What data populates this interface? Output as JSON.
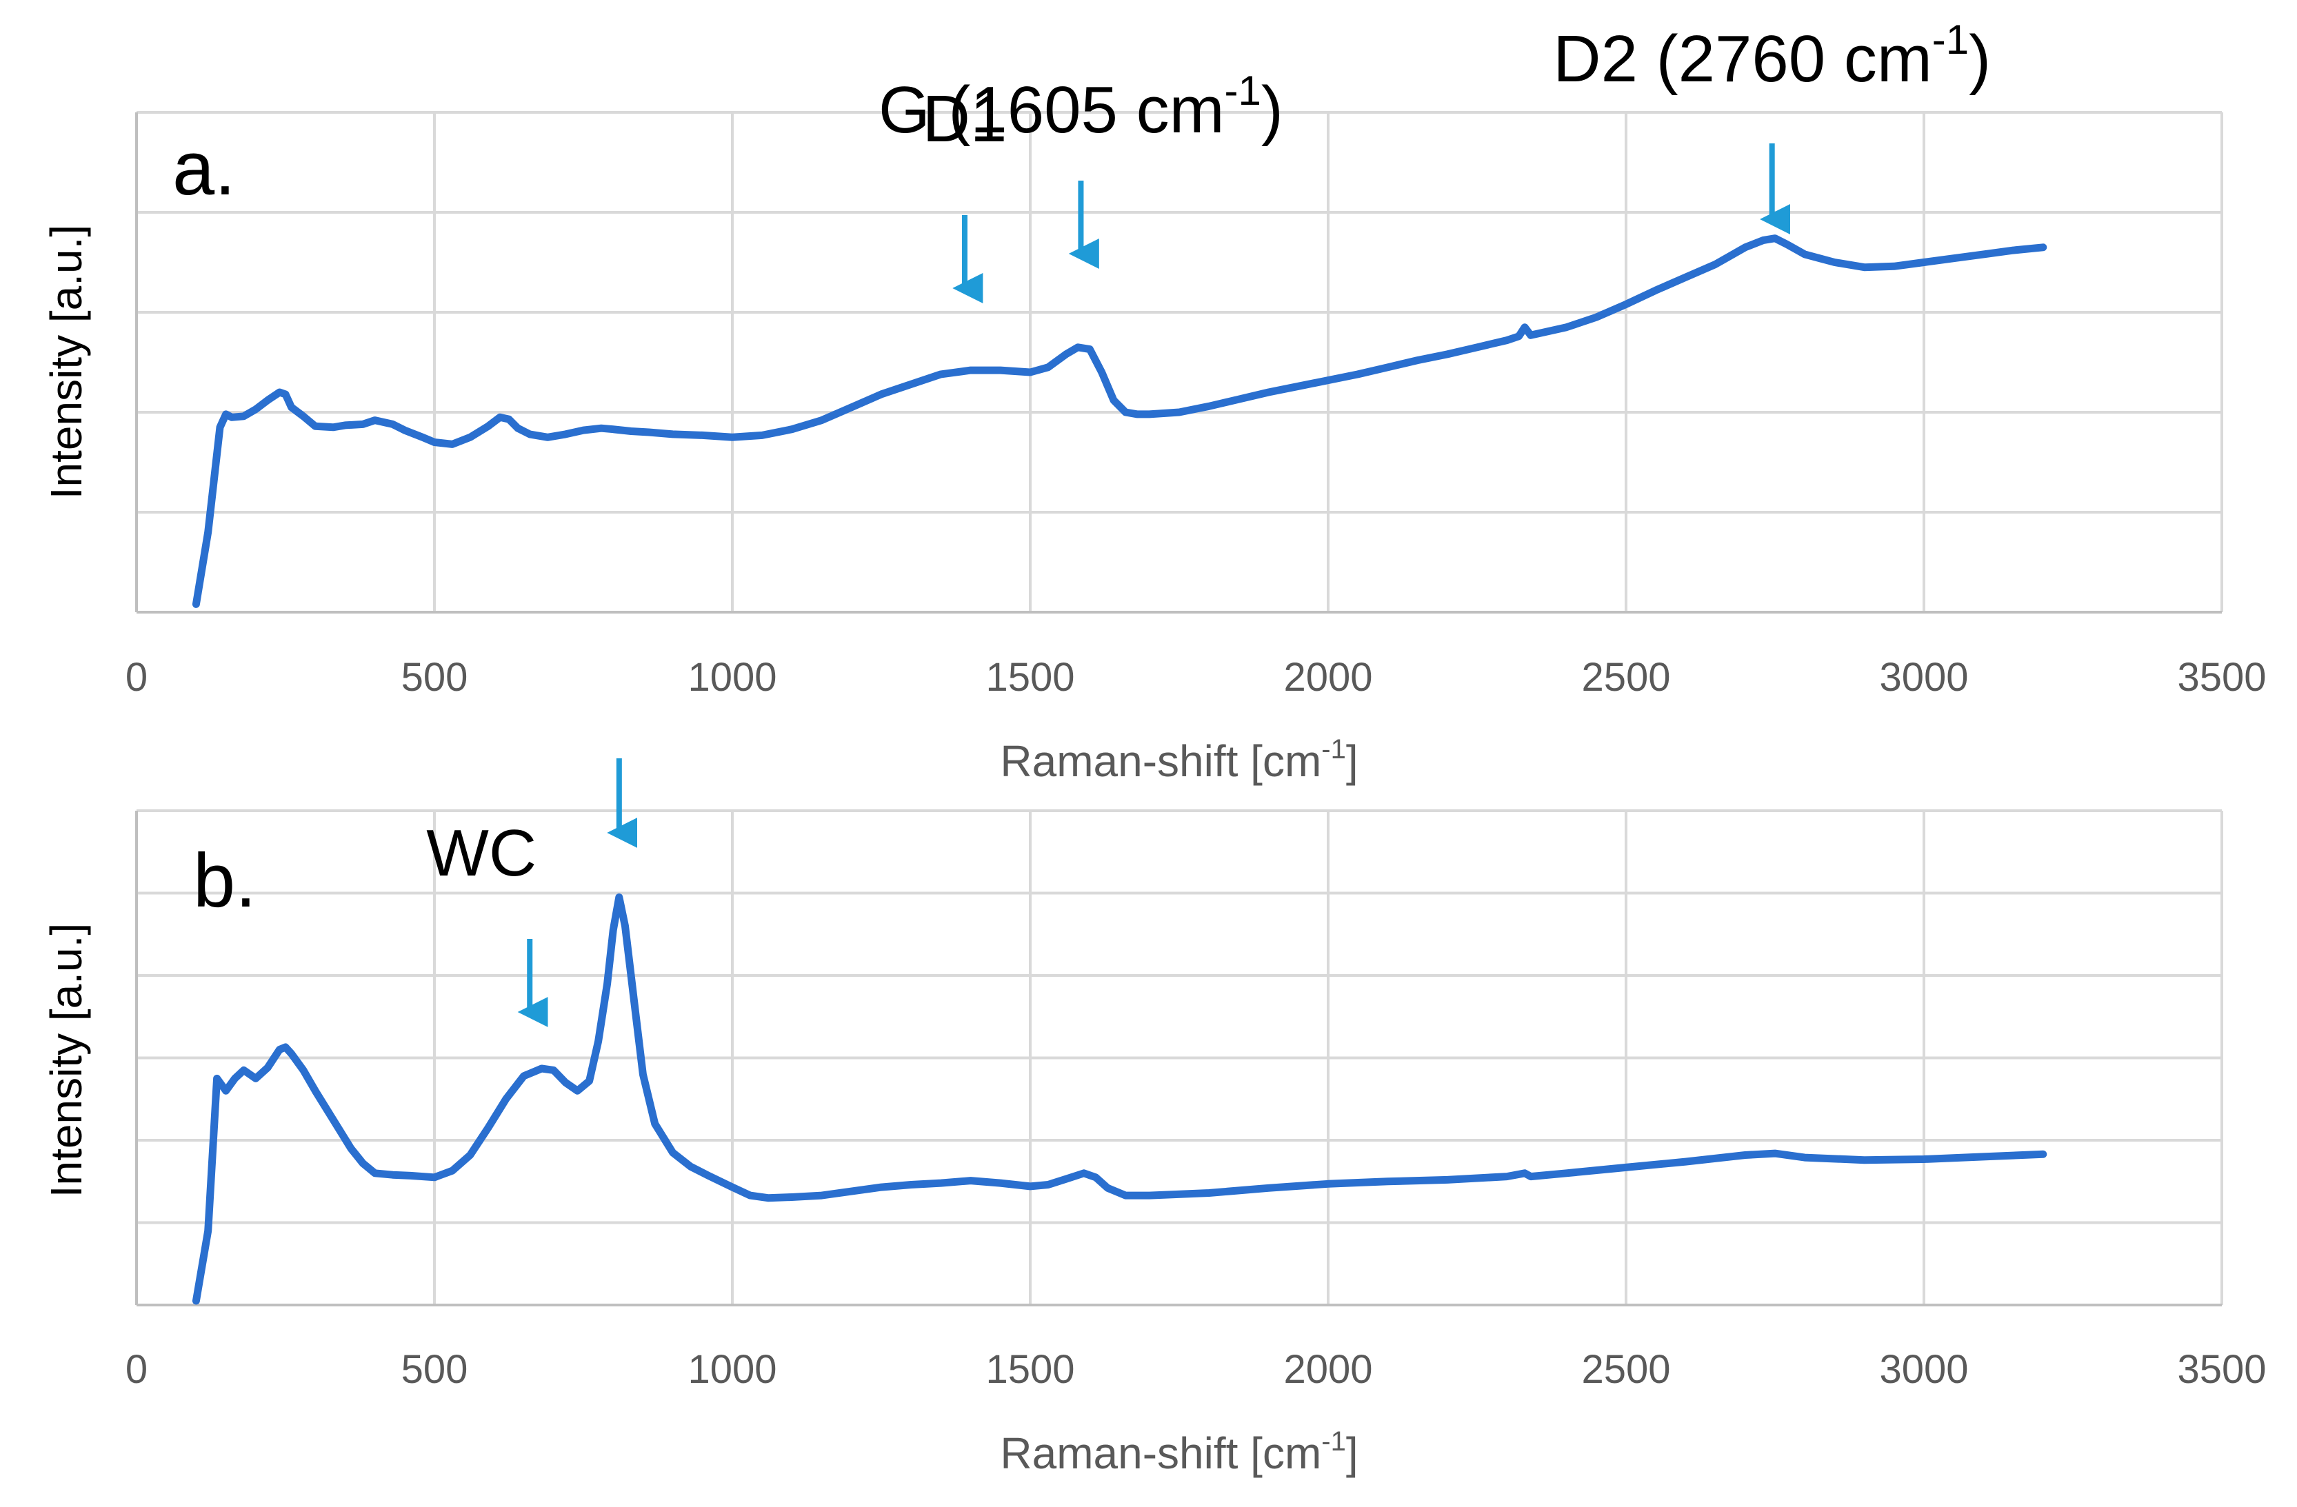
{
  "chart_data": [
    {
      "panel": "a.",
      "type": "line",
      "xlabel_main": "Raman-shift [cm",
      "xlabel_sup": "-1",
      "xlabel_close": "]",
      "ylabel": "Intensity [a.u.]",
      "xlim": [
        0,
        3500
      ],
      "ylim": [
        0,
        5
      ],
      "xticks": [
        0,
        500,
        1000,
        1500,
        2000,
        2500,
        3000,
        3500
      ],
      "series_color": "#2a6fcf",
      "arrow_color": "#1f9bd7",
      "series": [
        {
          "name": "a",
          "x": [
            100,
            120,
            140,
            150,
            160,
            180,
            200,
            220,
            240,
            250,
            260,
            280,
            300,
            330,
            350,
            380,
            400,
            430,
            450,
            480,
            500,
            530,
            560,
            590,
            610,
            625,
            640,
            660,
            690,
            720,
            750,
            780,
            800,
            830,
            860,
            900,
            950,
            1000,
            1050,
            1100,
            1150,
            1200,
            1250,
            1300,
            1350,
            1400,
            1450,
            1500,
            1530,
            1560,
            1580,
            1600,
            1620,
            1640,
            1660,
            1680,
            1700,
            1750,
            1800,
            1850,
            1900,
            1950,
            2000,
            2050,
            2100,
            2150,
            2200,
            2250,
            2300,
            2320,
            2330,
            2340,
            2400,
            2450,
            2500,
            2550,
            2600,
            2650,
            2700,
            2730,
            2750,
            2770,
            2800,
            2850,
            2900,
            2950,
            3000,
            3050,
            3100,
            3150,
            3200
          ],
          "y": [
            0.08,
            0.8,
            1.85,
            1.98,
            1.95,
            1.96,
            2.03,
            2.12,
            2.2,
            2.18,
            2.05,
            1.96,
            1.86,
            1.85,
            1.87,
            1.88,
            1.92,
            1.88,
            1.82,
            1.75,
            1.7,
            1.68,
            1.75,
            1.86,
            1.95,
            1.93,
            1.84,
            1.78,
            1.75,
            1.78,
            1.82,
            1.84,
            1.83,
            1.81,
            1.8,
            1.78,
            1.77,
            1.75,
            1.77,
            1.83,
            1.92,
            2.05,
            2.18,
            2.28,
            2.38,
            2.42,
            2.42,
            2.4,
            2.45,
            2.58,
            2.65,
            2.63,
            2.4,
            2.12,
            2.0,
            1.98,
            1.98,
            2.0,
            2.06,
            2.13,
            2.2,
            2.26,
            2.32,
            2.38,
            2.45,
            2.52,
            2.58,
            2.65,
            2.72,
            2.76,
            2.85,
            2.77,
            2.85,
            2.95,
            3.08,
            3.22,
            3.35,
            3.48,
            3.65,
            3.72,
            3.74,
            3.68,
            3.58,
            3.5,
            3.45,
            3.46,
            3.5,
            3.54,
            3.58,
            3.62,
            3.65
          ]
        }
      ],
      "annotations": [
        {
          "label": "D1",
          "sup": "",
          "suffix": "",
          "x": 1390
        },
        {
          "label": "G (1605 cm",
          "sup": "-1",
          "suffix": ")",
          "x": 1585
        },
        {
          "label": "D2 (2760 cm",
          "sup": "-1",
          "suffix": ")",
          "x": 2745
        }
      ]
    },
    {
      "panel": "b.",
      "type": "line",
      "xlabel_main": "Raman-shift [cm",
      "xlabel_sup": "-1",
      "xlabel_close": "]",
      "ylabel": "Intensity [a.u.]",
      "xlim": [
        0,
        3500
      ],
      "ylim": [
        0,
        6
      ],
      "xticks": [
        0,
        500,
        1000,
        1500,
        2000,
        2500,
        3000,
        3500
      ],
      "series_color": "#2a6fcf",
      "arrow_color": "#1f9bd7",
      "series": [
        {
          "name": "b",
          "x": [
            100,
            120,
            135,
            150,
            165,
            180,
            200,
            220,
            240,
            250,
            260,
            280,
            300,
            330,
            360,
            380,
            400,
            430,
            460,
            500,
            530,
            560,
            590,
            620,
            650,
            680,
            700,
            720,
            740,
            760,
            775,
            790,
            800,
            810,
            820,
            835,
            850,
            870,
            900,
            930,
            960,
            1000,
            1030,
            1060,
            1100,
            1150,
            1200,
            1250,
            1300,
            1350,
            1400,
            1450,
            1500,
            1530,
            1560,
            1590,
            1610,
            1630,
            1660,
            1700,
            1800,
            1900,
            2000,
            2100,
            2200,
            2300,
            2330,
            2340,
            2400,
            2500,
            2600,
            2700,
            2750,
            2800,
            2900,
            3000,
            3100,
            3200
          ],
          "y": [
            0.05,
            0.9,
            2.75,
            2.6,
            2.75,
            2.85,
            2.75,
            2.88,
            3.1,
            3.13,
            3.05,
            2.85,
            2.6,
            2.25,
            1.9,
            1.72,
            1.6,
            1.58,
            1.57,
            1.55,
            1.63,
            1.82,
            2.15,
            2.5,
            2.78,
            2.87,
            2.85,
            2.7,
            2.6,
            2.72,
            3.2,
            3.9,
            4.55,
            4.95,
            4.6,
            3.7,
            2.8,
            2.2,
            1.85,
            1.68,
            1.57,
            1.43,
            1.33,
            1.3,
            1.31,
            1.33,
            1.38,
            1.43,
            1.46,
            1.48,
            1.51,
            1.48,
            1.44,
            1.46,
            1.53,
            1.6,
            1.55,
            1.42,
            1.33,
            1.33,
            1.36,
            1.42,
            1.47,
            1.5,
            1.52,
            1.56,
            1.6,
            1.56,
            1.6,
            1.67,
            1.74,
            1.82,
            1.84,
            1.79,
            1.76,
            1.77,
            1.8,
            1.83
          ]
        }
      ],
      "annotations": [
        {
          "label": "WC",
          "sup": "",
          "suffix": "",
          "x": 660,
          "arrows_x": [
            660,
            810
          ]
        }
      ]
    }
  ]
}
